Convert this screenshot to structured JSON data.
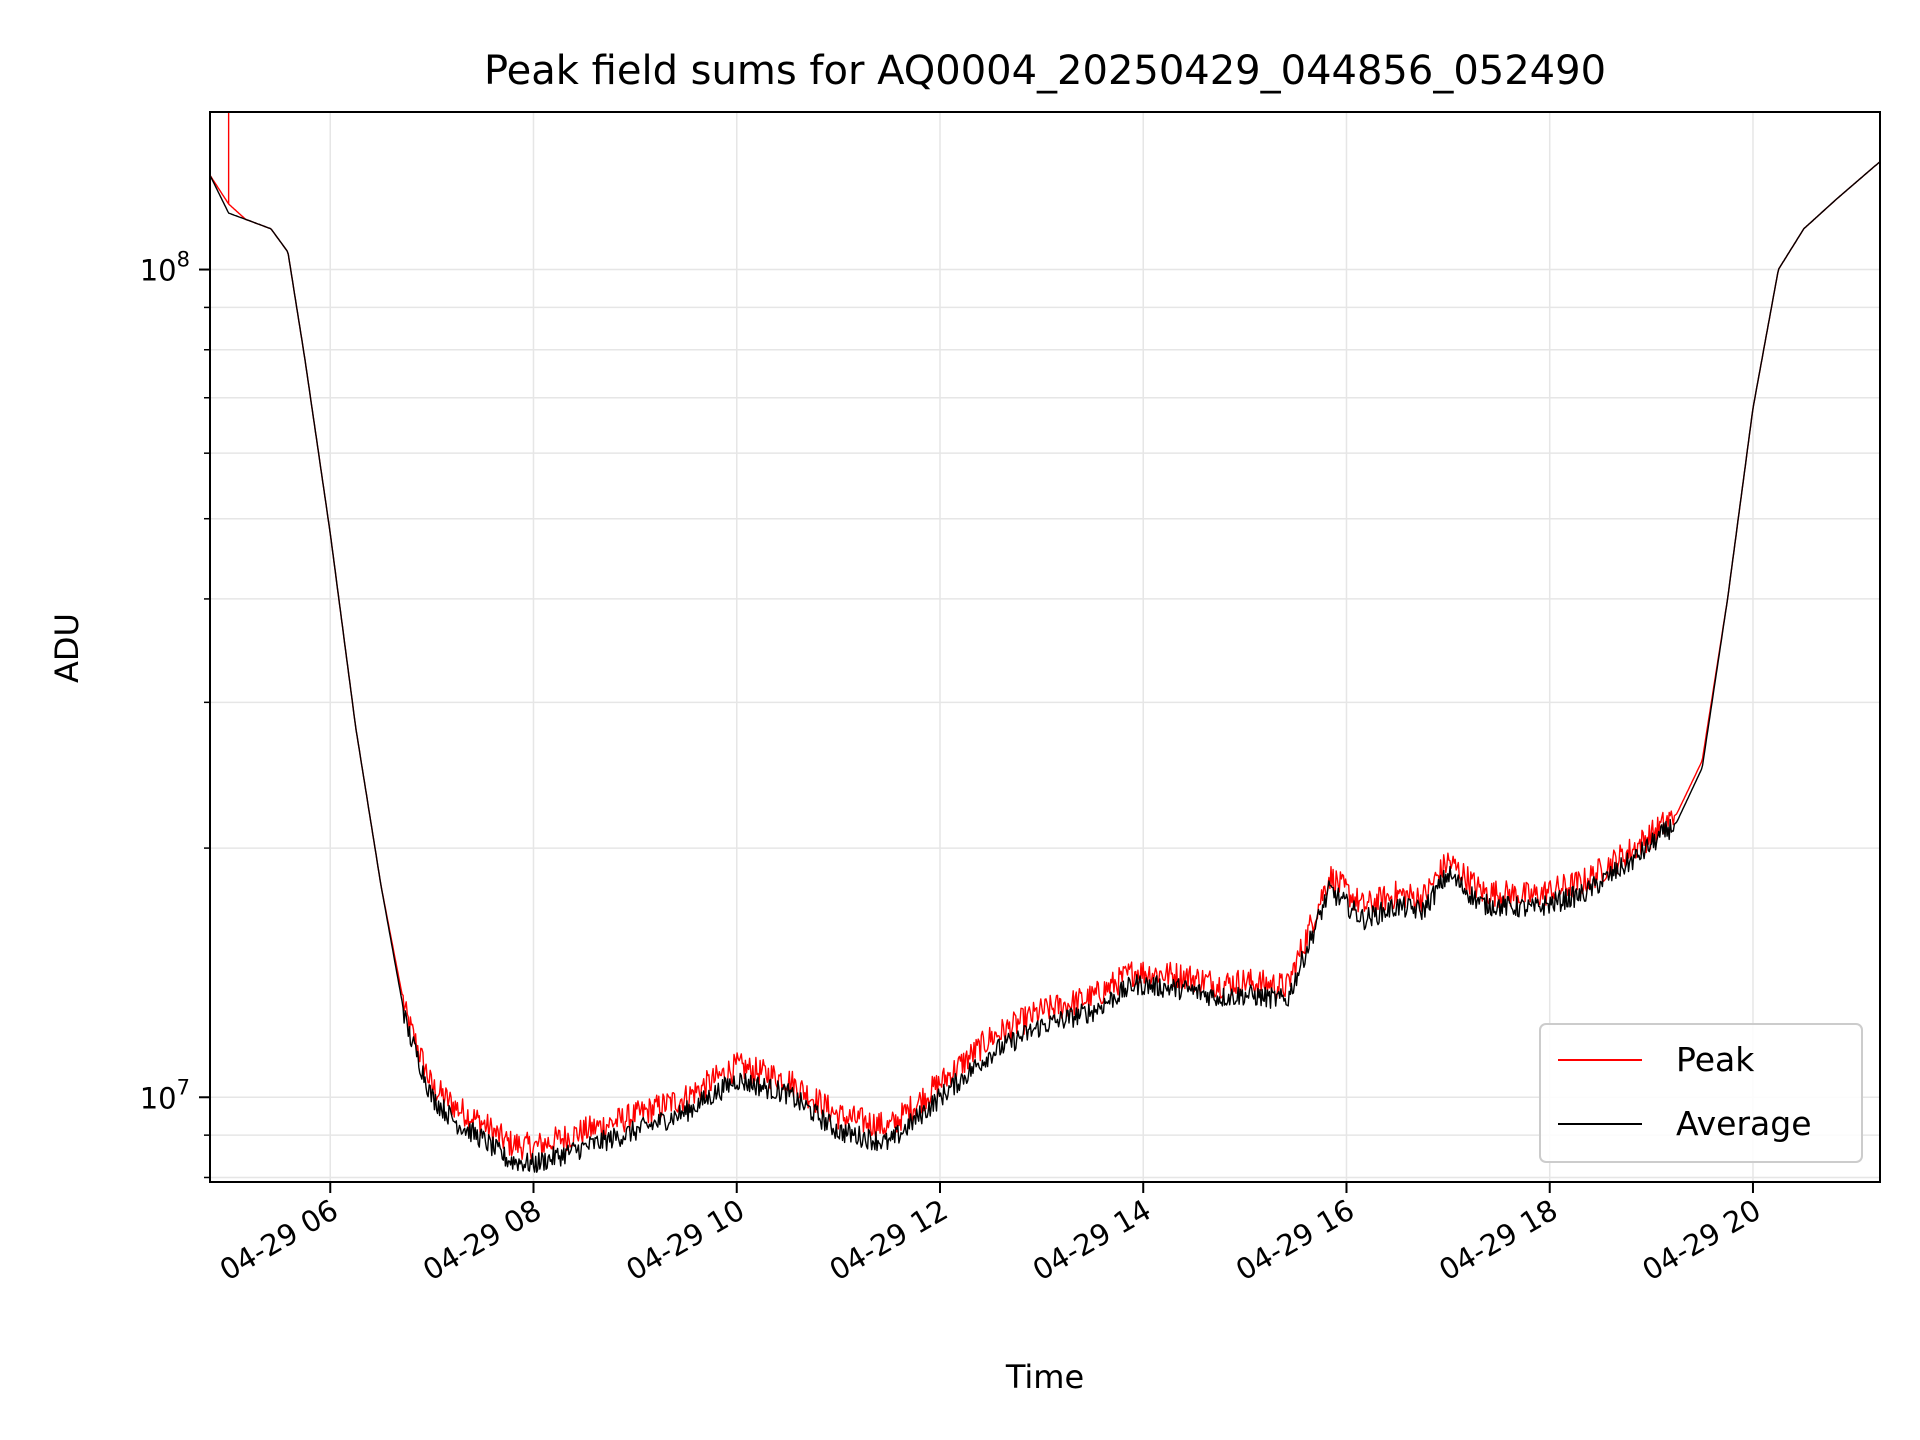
{
  "chart_data": {
    "type": "line",
    "title": "Peak field sums for AQ0004_20250429_044856_052490",
    "xlabel": "Time",
    "ylabel": "ADU",
    "x_scale": "time",
    "y_scale": "log",
    "xlim": [
      "2025-04-29 04:49",
      "2025-04-29 21:15"
    ],
    "ylim": [
      7900000,
      155000000
    ],
    "x_ticks": [
      {
        "label": "04-29 06",
        "value": "2025-04-29 06:00"
      },
      {
        "label": "04-29 08",
        "value": "2025-04-29 08:00"
      },
      {
        "label": "04-29 10",
        "value": "2025-04-29 10:00"
      },
      {
        "label": "04-29 12",
        "value": "2025-04-29 12:00"
      },
      {
        "label": "04-29 14",
        "value": "2025-04-29 14:00"
      },
      {
        "label": "04-29 16",
        "value": "2025-04-29 16:00"
      },
      {
        "label": "04-29 18",
        "value": "2025-04-29 18:00"
      },
      {
        "label": "04-29 20",
        "value": "2025-04-29 20:00"
      }
    ],
    "y_ticks": [
      {
        "base": "10",
        "exp": "7",
        "value": 10000000
      },
      {
        "base": "10",
        "exp": "8",
        "value": 100000000
      }
    ],
    "grid": true,
    "legend": {
      "position": "lower-right"
    },
    "colors": {
      "peak": "#ff0000",
      "average": "#000000"
    },
    "series": [
      {
        "name": "Peak",
        "x": [
          "2025-04-29 04:49",
          "2025-04-29 05:00",
          "2025-04-29 05:10",
          "2025-04-29 05:25",
          "2025-04-29 05:35",
          "2025-04-29 05:45",
          "2025-04-29 06:00",
          "2025-04-29 06:15",
          "2025-04-29 06:30",
          "2025-04-29 06:45",
          "2025-04-29 07:00",
          "2025-04-29 07:15",
          "2025-04-29 07:30",
          "2025-04-29 07:45",
          "2025-04-29 08:00",
          "2025-04-29 08:30",
          "2025-04-29 09:00",
          "2025-04-29 09:30",
          "2025-04-29 10:00",
          "2025-04-29 10:30",
          "2025-04-29 11:00",
          "2025-04-29 11:30",
          "2025-04-29 12:00",
          "2025-04-29 12:30",
          "2025-04-29 13:00",
          "2025-04-29 13:30",
          "2025-04-29 13:55",
          "2025-04-29 14:25",
          "2025-04-29 14:45",
          "2025-04-29 15:00",
          "2025-04-29 15:25",
          "2025-04-29 15:50",
          "2025-04-29 16:10",
          "2025-04-29 16:30",
          "2025-04-29 16:45",
          "2025-04-29 17:00",
          "2025-04-29 17:20",
          "2025-04-29 17:50",
          "2025-04-29 18:20",
          "2025-04-29 18:50",
          "2025-04-29 19:15",
          "2025-04-29 19:30",
          "2025-04-29 19:45",
          "2025-04-29 20:00",
          "2025-04-29 20:15",
          "2025-04-29 20:30",
          "2025-04-29 20:50",
          "2025-04-29 21:15"
        ],
        "values": [
          130000000,
          120000000,
          115000000,
          112000000,
          105000000,
          78000000,
          48000000,
          28000000,
          18000000,
          12500000,
          10300000,
          9700000,
          9300000,
          8800000,
          8700000,
          9100000,
          9500000,
          10000000,
          10900000,
          10500000,
          9500000,
          9200000,
          10400000,
          11800000,
          12700000,
          13200000,
          14200000,
          14000000,
          13700000,
          13800000,
          13600000,
          18500000,
          17000000,
          17600000,
          17400000,
          19300000,
          17700000,
          17500000,
          18200000,
          20000000,
          22000000,
          25500000,
          40000000,
          68000000,
          100000000,
          112000000,
          122000000,
          135000000
        ]
      },
      {
        "name": "Average",
        "x": [
          "2025-04-29 04:49",
          "2025-04-29 05:00",
          "2025-04-29 05:10",
          "2025-04-29 05:25",
          "2025-04-29 05:35",
          "2025-04-29 05:45",
          "2025-04-29 06:00",
          "2025-04-29 06:15",
          "2025-04-29 06:30",
          "2025-04-29 06:45",
          "2025-04-29 07:00",
          "2025-04-29 07:15",
          "2025-04-29 07:30",
          "2025-04-29 07:45",
          "2025-04-29 08:00",
          "2025-04-29 08:30",
          "2025-04-29 09:00",
          "2025-04-29 09:30",
          "2025-04-29 10:00",
          "2025-04-29 10:30",
          "2025-04-29 11:00",
          "2025-04-29 11:30",
          "2025-04-29 12:00",
          "2025-04-29 12:30",
          "2025-04-29 13:00",
          "2025-04-29 13:30",
          "2025-04-29 13:55",
          "2025-04-29 14:25",
          "2025-04-29 14:45",
          "2025-04-29 15:00",
          "2025-04-29 15:25",
          "2025-04-29 15:50",
          "2025-04-29 16:10",
          "2025-04-29 16:30",
          "2025-04-29 16:45",
          "2025-04-29 17:00",
          "2025-04-29 17:20",
          "2025-04-29 17:50",
          "2025-04-29 18:20",
          "2025-04-29 18:50",
          "2025-04-29 19:15",
          "2025-04-29 19:30",
          "2025-04-29 19:45",
          "2025-04-29 20:00",
          "2025-04-29 20:15",
          "2025-04-29 20:30",
          "2025-04-29 20:50",
          "2025-04-29 21:15"
        ],
        "values": [
          130000000,
          117000000,
          115000000,
          112000000,
          105000000,
          78000000,
          48000000,
          28000000,
          18000000,
          12200000,
          10000000,
          9300000,
          8900000,
          8400000,
          8300000,
          8700000,
          9100000,
          9600000,
          10500000,
          10100000,
          9100000,
          8800000,
          10000000,
          11300000,
          12200000,
          12700000,
          13700000,
          13500000,
          13200000,
          13300000,
          13100000,
          17800000,
          16400000,
          17000000,
          16800000,
          18600000,
          17100000,
          16900000,
          17600000,
          19400000,
          21500000,
          25000000,
          40000000,
          68000000,
          100000000,
          112000000,
          122000000,
          135000000
        ]
      }
    ]
  }
}
